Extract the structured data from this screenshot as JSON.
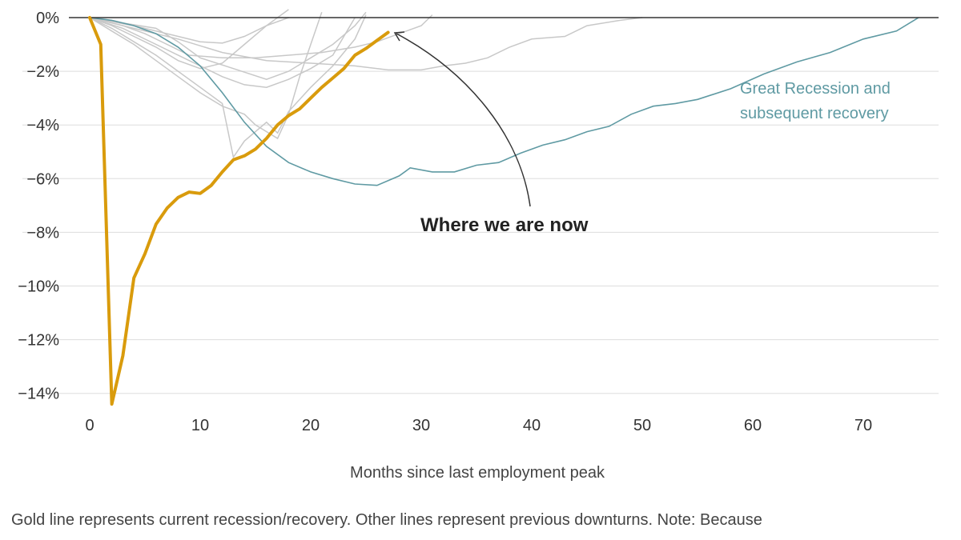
{
  "chart_data": {
    "type": "line",
    "xlabel": "Months since last employment peak",
    "ylabel": "",
    "xlim": [
      -5,
      77
    ],
    "ylim": [
      -14.6,
      0.6
    ],
    "x_ticks": [
      0,
      10,
      20,
      30,
      40,
      50,
      60,
      70
    ],
    "y_ticks": [
      0,
      -2,
      -4,
      -6,
      -8,
      -10,
      -12,
      -14
    ],
    "y_tick_labels": [
      "0%",
      "−2%",
      "−4%",
      "−6%",
      "−8%",
      "−10%",
      "−12%",
      "−14%"
    ],
    "grid": true,
    "colors": {
      "current": "#d99b0c",
      "great_recession": "#5f9aa3",
      "previous": "#c8c8c8",
      "zero_line": "#333333",
      "grid": "#dddddd"
    },
    "current_series": {
      "points": [
        [
          0,
          0
        ],
        [
          1,
          -1
        ],
        [
          2,
          -14.4
        ],
        [
          3,
          -12.6
        ],
        [
          4,
          -9.7
        ],
        [
          5,
          -8.8
        ],
        [
          6,
          -7.7
        ],
        [
          7,
          -7.1
        ],
        [
          8,
          -6.7
        ],
        [
          9,
          -6.5
        ],
        [
          10,
          -6.55
        ],
        [
          11,
          -6.25
        ],
        [
          12,
          -5.75
        ],
        [
          13,
          -5.3
        ],
        [
          14,
          -5.15
        ],
        [
          15,
          -4.9
        ],
        [
          16,
          -4.5
        ],
        [
          17,
          -4.0
        ],
        [
          18,
          -3.65
        ],
        [
          19,
          -3.4
        ],
        [
          20,
          -3.0
        ],
        [
          21,
          -2.6
        ],
        [
          22,
          -2.25
        ],
        [
          23,
          -1.9
        ],
        [
          24,
          -1.4
        ],
        [
          25,
          -1.15
        ],
        [
          26,
          -0.85
        ],
        [
          27,
          -0.55
        ]
      ]
    },
    "great_recession_series": {
      "label_lines": [
        "Great Recession and",
        "subsequent recovery"
      ],
      "points": [
        [
          0,
          0
        ],
        [
          2,
          -0.1
        ],
        [
          4,
          -0.3
        ],
        [
          6,
          -0.6
        ],
        [
          8,
          -1.1
        ],
        [
          10,
          -1.8
        ],
        [
          12,
          -2.8
        ],
        [
          14,
          -3.9
        ],
        [
          16,
          -4.8
        ],
        [
          18,
          -5.4
        ],
        [
          20,
          -5.75
        ],
        [
          22,
          -6.0
        ],
        [
          24,
          -6.2
        ],
        [
          26,
          -6.25
        ],
        [
          28,
          -5.9
        ],
        [
          29,
          -5.6
        ],
        [
          31,
          -5.75
        ],
        [
          33,
          -5.75
        ],
        [
          35,
          -5.5
        ],
        [
          37,
          -5.4
        ],
        [
          39,
          -5.05
        ],
        [
          41,
          -4.75
        ],
        [
          43,
          -4.55
        ],
        [
          45,
          -4.25
        ],
        [
          47,
          -4.05
        ],
        [
          49,
          -3.6
        ],
        [
          51,
          -3.3
        ],
        [
          53,
          -3.2
        ],
        [
          55,
          -3.05
        ],
        [
          58,
          -2.65
        ],
        [
          61,
          -2.1
        ],
        [
          64,
          -1.65
        ],
        [
          67,
          -1.3
        ],
        [
          70,
          -0.8
        ],
        [
          73,
          -0.5
        ],
        [
          75,
          0
        ]
      ]
    },
    "previous_series": [
      [
        [
          0,
          0
        ],
        [
          3,
          -0.3
        ],
        [
          5,
          -0.6
        ],
        [
          7,
          -1.0
        ],
        [
          9,
          -1.4
        ],
        [
          12,
          -1.5
        ],
        [
          15,
          -1.5
        ],
        [
          18,
          -1.4
        ],
        [
          21,
          -1.3
        ],
        [
          24,
          -1.1
        ],
        [
          26,
          -0.9
        ],
        [
          28,
          -0.6
        ],
        [
          30,
          -0.3
        ],
        [
          31,
          0.1
        ]
      ],
      [
        [
          0,
          0
        ],
        [
          2,
          -0.5
        ],
        [
          4,
          -1.0
        ],
        [
          6,
          -1.6
        ],
        [
          8,
          -2.2
        ],
        [
          10,
          -2.8
        ],
        [
          12,
          -3.3
        ],
        [
          14,
          -3.6
        ],
        [
          15,
          -4.0
        ],
        [
          17,
          -4.5
        ],
        [
          18,
          -3.6
        ],
        [
          19,
          -2.2
        ],
        [
          20,
          -1.0
        ],
        [
          21,
          0.2
        ]
      ],
      [
        [
          0,
          0
        ],
        [
          2,
          -0.4
        ],
        [
          4,
          -0.9
        ],
        [
          6,
          -1.4
        ],
        [
          8,
          -2.0
        ],
        [
          10,
          -2.6
        ],
        [
          12,
          -3.2
        ],
        [
          13,
          -5.2
        ],
        [
          14,
          -4.6
        ],
        [
          16,
          -3.9
        ],
        [
          17,
          -4.3
        ],
        [
          18,
          -3.5
        ],
        [
          20,
          -2.6
        ],
        [
          22,
          -1.8
        ],
        [
          24,
          -0.8
        ],
        [
          25,
          0.1
        ]
      ],
      [
        [
          0,
          0
        ],
        [
          2,
          -0.3
        ],
        [
          4,
          -0.7
        ],
        [
          6,
          -1.1
        ],
        [
          8,
          -1.6
        ],
        [
          10,
          -1.9
        ],
        [
          12,
          -1.7
        ],
        [
          14,
          -1.0
        ],
        [
          16,
          -0.3
        ],
        [
          18,
          0.3
        ]
      ],
      [
        [
          0,
          0
        ],
        [
          3,
          -0.2
        ],
        [
          6,
          -0.4
        ],
        [
          8,
          -0.9
        ],
        [
          10,
          -1.5
        ],
        [
          13,
          -1.9
        ],
        [
          16,
          -2.3
        ],
        [
          18,
          -2.0
        ],
        [
          20,
          -1.5
        ],
        [
          22,
          -1.0
        ],
        [
          24,
          -0.3
        ],
        [
          25,
          0.2
        ]
      ],
      [
        [
          0,
          0
        ],
        [
          3,
          -0.4
        ],
        [
          6,
          -1.0
        ],
        [
          9,
          -1.6
        ],
        [
          12,
          -2.2
        ],
        [
          14,
          -2.5
        ],
        [
          16,
          -2.6
        ],
        [
          18,
          -2.3
        ],
        [
          20,
          -1.9
        ],
        [
          22,
          -1.4
        ],
        [
          23,
          -0.7
        ],
        [
          24,
          0
        ]
      ],
      [
        [
          0,
          0
        ],
        [
          4,
          -0.4
        ],
        [
          8,
          -0.8
        ],
        [
          12,
          -1.3
        ],
        [
          16,
          -1.6
        ],
        [
          20,
          -1.7
        ],
        [
          24,
          -1.8
        ],
        [
          27,
          -1.95
        ],
        [
          30,
          -1.95
        ],
        [
          32,
          -1.8
        ],
        [
          34,
          -1.7
        ],
        [
          36,
          -1.5
        ],
        [
          38,
          -1.1
        ],
        [
          40,
          -0.8
        ],
        [
          43,
          -0.7
        ],
        [
          45,
          -0.3
        ],
        [
          48,
          -0.1
        ],
        [
          50,
          0
        ]
      ],
      [
        [
          0,
          0
        ],
        [
          4,
          -0.3
        ],
        [
          7,
          -0.6
        ],
        [
          10,
          -0.9
        ],
        [
          12,
          -0.95
        ],
        [
          14,
          -0.7
        ],
        [
          16,
          -0.3
        ],
        [
          18,
          0
        ]
      ]
    ],
    "annotation": {
      "text": "Where we are now",
      "target": [
        27,
        -0.55
      ]
    },
    "footnote": "Gold line represents current recession/recovery. Other lines represent previous downturns. Note: Because"
  }
}
